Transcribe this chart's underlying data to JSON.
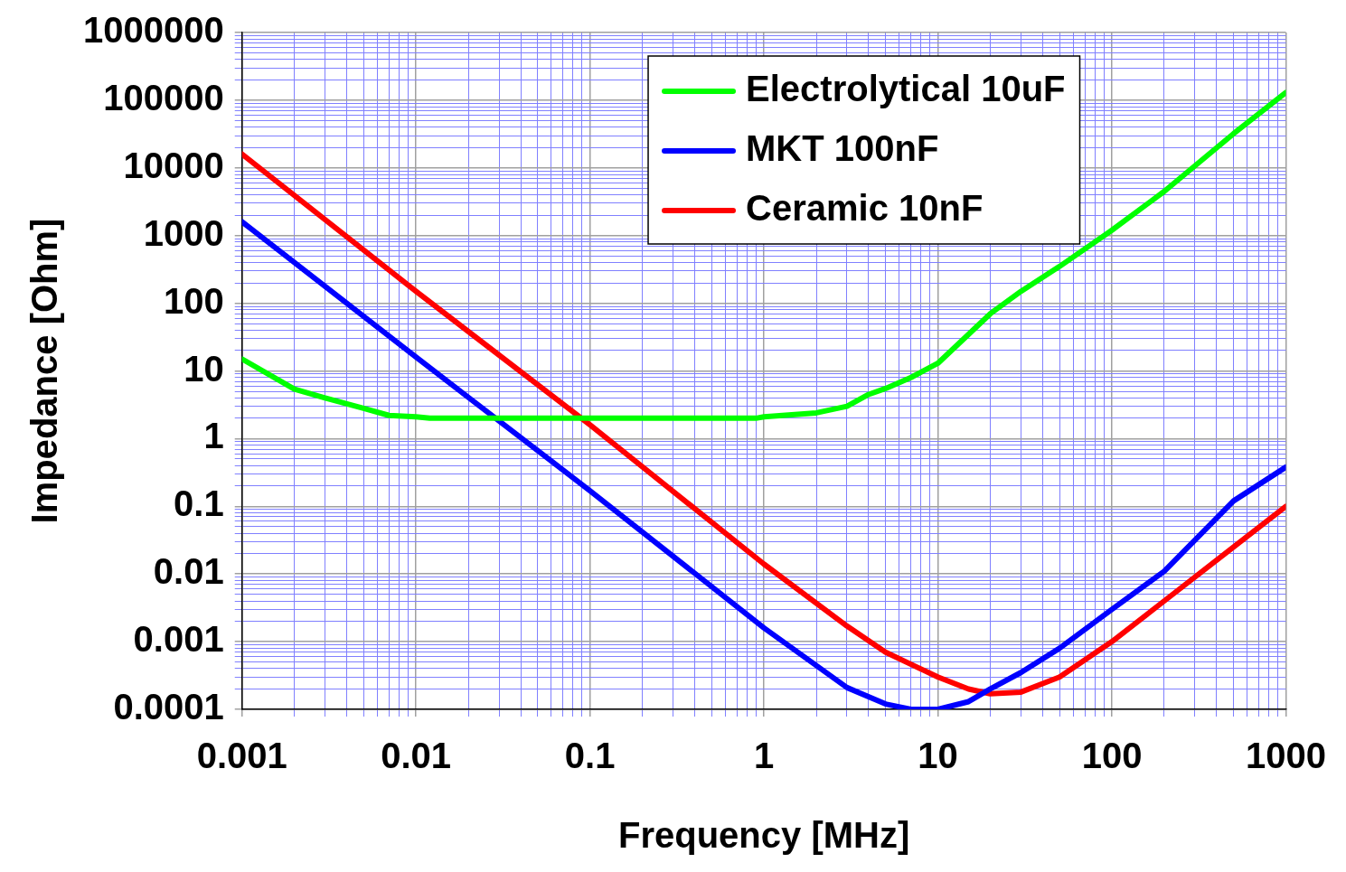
{
  "chart_data": {
    "type": "line",
    "xlabel": "Frequency [MHz]",
    "ylabel": "Impedance [Ohm]",
    "log": "xy",
    "grid": true,
    "legend": "top right",
    "marker": "none",
    "line_style": "solid",
    "xlim": [
      0.001,
      1000
    ],
    "ylim": [
      0.0001,
      1000000
    ],
    "xticks": [
      0.001,
      {
        "value": 0.002,
        "label": null
      },
      {
        "value": 0.003,
        "label": null
      },
      {
        "value": 0.004,
        "label": null
      },
      {
        "value": 0.005,
        "label": null
      },
      {
        "value": 0.006,
        "label": null
      },
      {
        "value": 0.007,
        "label": null
      },
      {
        "value": 0.008,
        "label": null
      },
      {
        "value": 0.009,
        "label": null
      },
      0.01,
      {
        "value": 0.02,
        "label": null
      },
      {
        "value": 0.03,
        "label": null
      },
      {
        "value": 0.04,
        "label": null
      },
      {
        "value": 0.05,
        "label": null
      },
      {
        "value": 0.06,
        "label": null
      },
      {
        "value": 0.07,
        "label": null
      },
      {
        "value": 0.08,
        "label": null
      },
      {
        "value": 0.09,
        "label": null
      },
      0.1,
      {
        "value": 0.2,
        "label": null
      },
      {
        "value": 0.3,
        "label": null
      },
      {
        "value": 0.4,
        "label": null
      },
      {
        "value": 0.5,
        "label": null
      },
      {
        "value": 0.6,
        "label": null
      },
      {
        "value": 0.7,
        "label": null
      },
      {
        "value": 0.8,
        "label": null
      },
      {
        "value": 0.9,
        "label": null
      },
      1,
      {
        "value": 2,
        "label": null
      },
      {
        "value": 3,
        "label": null
      },
      {
        "value": 4,
        "label": null
      },
      {
        "value": 5,
        "label": null
      },
      {
        "value": 6,
        "label": null
      },
      {
        "value": 7,
        "label": null
      },
      {
        "value": 8,
        "label": null
      },
      {
        "value": 9,
        "label": null
      },
      10,
      {
        "value": 20,
        "label": null
      },
      {
        "value": 30,
        "label": null
      },
      {
        "value": 40,
        "label": null
      },
      {
        "value": 50,
        "label": null
      },
      {
        "value": 60,
        "label": null
      },
      {
        "value": 70,
        "label": null
      },
      {
        "value": 80,
        "label": null
      },
      {
        "value": 90,
        "label": null
      },
      100,
      {
        "value": 200,
        "label": null
      },
      {
        "value": 300,
        "label": null
      },
      {
        "value": 400,
        "label": null
      },
      {
        "value": 500,
        "label": null
      },
      {
        "value": 600,
        "label": null
      },
      {
        "value": 700,
        "label": null
      },
      {
        "value": 800,
        "label": null
      },
      {
        "value": 900,
        "label": null
      },
      1000
    ],
    "yticks": [
      0.0001,
      {
        "value": 0.0002,
        "label": null
      },
      {
        "value": 0.0003,
        "label": null
      },
      {
        "value": 0.0004,
        "label": null
      },
      {
        "value": 0.0005,
        "label": null
      },
      {
        "value": 0.0006,
        "label": null
      },
      {
        "value": 0.0007,
        "label": null
      },
      {
        "value": 0.0008,
        "label": null
      },
      {
        "value": 0.0009,
        "label": null
      },
      0.001,
      {
        "value": 0.002,
        "label": null
      },
      {
        "value": 0.003,
        "label": null
      },
      {
        "value": 0.004,
        "label": null
      },
      {
        "value": 0.005,
        "label": null
      },
      {
        "value": 0.006,
        "label": null
      },
      {
        "value": 0.007,
        "label": null
      },
      {
        "value": 0.008,
        "label": null
      },
      {
        "value": 0.009,
        "label": null
      },
      0.01,
      {
        "value": 0.02,
        "label": null
      },
      {
        "value": 0.03,
        "label": null
      },
      {
        "value": 0.04,
        "label": null
      },
      {
        "value": 0.05,
        "label": null
      },
      {
        "value": 0.06,
        "label": null
      },
      {
        "value": 0.07,
        "label": null
      },
      {
        "value": 0.08,
        "label": null
      },
      {
        "value": 0.09,
        "label": null
      },
      0.1,
      {
        "value": 0.2,
        "label": null
      },
      {
        "value": 0.3,
        "label": null
      },
      {
        "value": 0.4,
        "label": null
      },
      {
        "value": 0.5,
        "label": null
      },
      {
        "value": 0.6,
        "label": null
      },
      {
        "value": 0.7,
        "label": null
      },
      {
        "value": 0.8,
        "label": null
      },
      {
        "value": 0.9,
        "label": null
      },
      1,
      {
        "value": 2,
        "label": null
      },
      {
        "value": 3,
        "label": null
      },
      {
        "value": 4,
        "label": null
      },
      {
        "value": 5,
        "label": null
      },
      {
        "value": 6,
        "label": null
      },
      {
        "value": 7,
        "label": null
      },
      {
        "value": 8,
        "label": null
      },
      {
        "value": 9,
        "label": null
      },
      10,
      {
        "value": 20,
        "label": null
      },
      {
        "value": 30,
        "label": null
      },
      {
        "value": 40,
        "label": null
      },
      {
        "value": 50,
        "label": null
      },
      {
        "value": 60,
        "label": null
      },
      {
        "value": 70,
        "label": null
      },
      {
        "value": 80,
        "label": null
      },
      {
        "value": 90,
        "label": null
      },
      100,
      {
        "value": 200,
        "label": null
      },
      {
        "value": 300,
        "label": null
      },
      {
        "value": 400,
        "label": null
      },
      {
        "value": 500,
        "label": null
      },
      {
        "value": 600,
        "label": null
      },
      {
        "value": 700,
        "label": null
      },
      {
        "value": 800,
        "label": null
      },
      {
        "value": 900,
        "label": null
      },
      1000,
      {
        "value": 2000,
        "label": null
      },
      {
        "value": 3000,
        "label": null
      },
      {
        "value": 4000,
        "label": null
      },
      {
        "value": 5000,
        "label": null
      },
      {
        "value": 6000,
        "label": null
      },
      {
        "value": 7000,
        "label": null
      },
      {
        "value": 8000,
        "label": null
      },
      {
        "value": 9000,
        "label": null
      },
      10000,
      {
        "value": 20000,
        "label": null
      },
      {
        "value": 30000,
        "label": null
      },
      {
        "value": 40000,
        "label": null
      },
      {
        "value": 50000,
        "label": null
      },
      {
        "value": 60000,
        "label": null
      },
      {
        "value": 70000,
        "label": null
      },
      {
        "value": 80000,
        "label": null
      },
      {
        "value": 90000,
        "label": null
      },
      100000,
      {
        "value": 200000,
        "label": null
      },
      {
        "value": 300000,
        "label": null
      },
      {
        "value": 400000,
        "label": null
      },
      {
        "value": 500000,
        "label": null
      },
      {
        "value": 600000,
        "label": null
      },
      {
        "value": 700000,
        "label": null
      },
      {
        "value": 800000,
        "label": null
      },
      {
        "value": 900000,
        "label": null
      },
      1000000
    ],
    "series": [
      {
        "name": "Electrolytical 10uF",
        "color": "#00ff00",
        "x": [
          0.001,
          0.002,
          0.003,
          0.005,
          0.007,
          0.01,
          0.012,
          0.1,
          0.9,
          1,
          2,
          3,
          4,
          5,
          7,
          10,
          20,
          30,
          50,
          100,
          200,
          500,
          1000
        ],
        "values": [
          15,
          5.4,
          4,
          2.8,
          2.2,
          2.1,
          2,
          2,
          2,
          2.1,
          2.4,
          3,
          4.5,
          5.5,
          8,
          13,
          70,
          150,
          350,
          1200,
          4500,
          32000,
          130000
        ]
      },
      {
        "name": "MKT 100nF",
        "color": "#0000ff",
        "x": [
          0.001,
          0.01,
          0.1,
          1,
          3,
          5,
          7,
          10,
          15,
          20,
          30,
          50,
          100,
          200,
          500,
          1000
        ],
        "values": [
          1600,
          16,
          0.17,
          0.0016,
          0.00021,
          0.00012,
          0.0001,
          0.0001,
          0.00013,
          0.0002,
          0.00035,
          0.0008,
          0.003,
          0.011,
          0.12,
          0.38
        ]
      },
      {
        "name": "Ceramic 10nF",
        "color": "#ff0000",
        "x": [
          0.001,
          0.01,
          0.1,
          1,
          3,
          5,
          10,
          15,
          20,
          30,
          50,
          100,
          200,
          500,
          1000
        ],
        "values": [
          16000,
          150,
          1.6,
          0.014,
          0.0017,
          0.0007,
          0.0003,
          0.0002,
          0.00017,
          0.00018,
          0.0003,
          0.001,
          0.004,
          0.025,
          0.1
        ]
      }
    ]
  }
}
